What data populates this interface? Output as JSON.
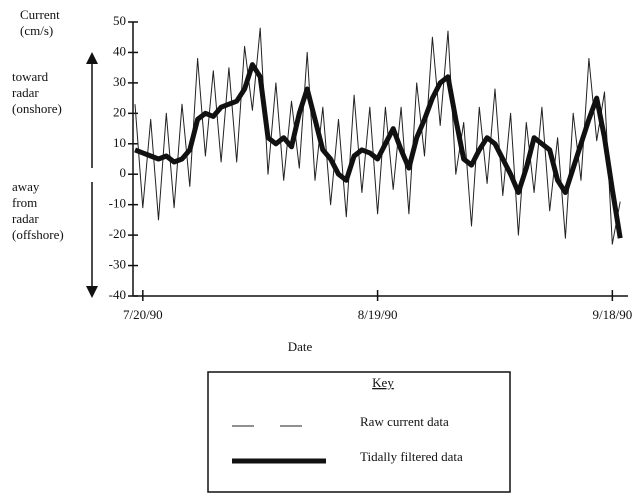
{
  "chart_data": {
    "type": "line",
    "y_label": [
      "Current",
      "(cm/s)"
    ],
    "annotations": [
      [
        "toward",
        "radar",
        "(onshore)"
      ],
      [
        "away",
        "from",
        "radar",
        "(offshore)"
      ]
    ],
    "x_label": "Date",
    "legend_title": "Key",
    "x": [
      "1990-07-19",
      "1990-07-20",
      "1990-07-21",
      "1990-07-22",
      "1990-07-23",
      "1990-07-24",
      "1990-07-25",
      "1990-07-26",
      "1990-07-27",
      "1990-07-28",
      "1990-07-29",
      "1990-07-30",
      "1990-07-31",
      "1990-08-01",
      "1990-08-02",
      "1990-08-03",
      "1990-08-04",
      "1990-08-05",
      "1990-08-06",
      "1990-08-07",
      "1990-08-08",
      "1990-08-09",
      "1990-08-10",
      "1990-08-11",
      "1990-08-12",
      "1990-08-13",
      "1990-08-14",
      "1990-08-15",
      "1990-08-16",
      "1990-08-17",
      "1990-08-18",
      "1990-08-19",
      "1990-08-20",
      "1990-08-21",
      "1990-08-22",
      "1990-08-23",
      "1990-08-24",
      "1990-08-25",
      "1990-08-26",
      "1990-08-27",
      "1990-08-28",
      "1990-08-29",
      "1990-08-30",
      "1990-08-31",
      "1990-09-01",
      "1990-09-02",
      "1990-09-03",
      "1990-09-04",
      "1990-09-05",
      "1990-09-06",
      "1990-09-07",
      "1990-09-08",
      "1990-09-09",
      "1990-09-10",
      "1990-09-11",
      "1990-09-12",
      "1990-09-13",
      "1990-09-14",
      "1990-09-15",
      "1990-09-16",
      "1990-09-17",
      "1990-09-18",
      "1990-09-19"
    ],
    "series": [
      {
        "name": "Raw current data",
        "color": "#222222",
        "width": 1,
        "values": [
          23,
          -11,
          18,
          -15,
          20,
          -11,
          23,
          -4,
          38,
          6,
          34,
          4,
          35,
          4,
          42,
          21,
          48,
          0,
          30,
          -2,
          24,
          2,
          40,
          -2,
          22,
          -10,
          18,
          -14,
          26,
          -6,
          22,
          -13,
          22,
          -5,
          22,
          -13,
          30,
          6,
          45,
          16,
          47,
          0,
          17,
          -17,
          22,
          -3,
          28,
          -7,
          20,
          -20,
          17,
          -6,
          22,
          -12,
          12,
          -21,
          20,
          -2,
          38,
          11,
          27,
          -23,
          -9
        ]
      },
      {
        "name": "Tidally filtered data",
        "color": "#111111",
        "width": 5,
        "values": [
          8,
          7,
          6,
          5,
          6,
          4,
          5,
          8,
          18,
          20,
          19,
          22,
          23,
          24,
          28,
          36,
          32,
          12,
          10,
          12,
          9,
          20,
          28,
          18,
          8,
          5,
          0,
          -2,
          6,
          8,
          7,
          5,
          10,
          15,
          8,
          2,
          12,
          18,
          25,
          30,
          32,
          18,
          5,
          3,
          8,
          12,
          10,
          5,
          0,
          -6,
          2,
          12,
          10,
          8,
          -2,
          -6,
          2,
          10,
          18,
          25,
          12,
          -5,
          -21
        ]
      }
    ],
    "xlim": [
      "1990-07-19",
      "1990-09-20"
    ],
    "xticks": [
      {
        "value": "1990-07-20",
        "label": "7/20/90"
      },
      {
        "value": "1990-08-19",
        "label": "8/19/90"
      },
      {
        "value": "1990-09-18",
        "label": "9/18/90"
      }
    ],
    "ylim": [
      -40,
      50
    ],
    "yticks": [
      -40,
      -30,
      -20,
      -10,
      0,
      10,
      20,
      30,
      40,
      50
    ]
  }
}
